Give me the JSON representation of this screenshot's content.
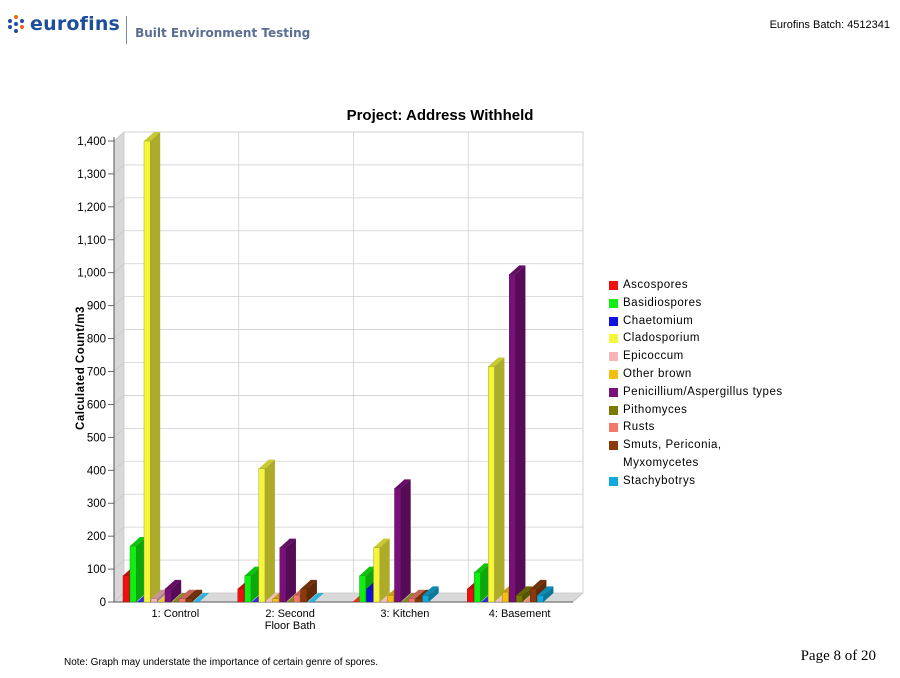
{
  "header": {
    "logo_text": "eurofins",
    "logo_subtitle": "Built Environment Testing",
    "batch_label": "Eurofins Batch:",
    "batch_number": "4512341"
  },
  "footer": {
    "note": "Note: Graph may understate the importance of certain genre of spores.",
    "page": "Page 8 of 20"
  },
  "chart_data": {
    "type": "bar",
    "title": "Project: Address Withheld",
    "xlabel": "",
    "ylabel": "Calculated Count/m3",
    "ylim": [
      0,
      1400
    ],
    "yticks": [
      "0",
      "100",
      "200",
      "300",
      "400",
      "500",
      "600",
      "700",
      "800",
      "900",
      "1,000",
      "1,100",
      "1,200",
      "1,300",
      "1,400"
    ],
    "grid": true,
    "legend_position": "right",
    "categories": [
      "1: Control",
      "2: Second Floor Bath",
      "3: Kitchen",
      "4: Basement"
    ],
    "category_lines": [
      [
        "1: Control"
      ],
      [
        "2: Second",
        "Floor Bath"
      ],
      [
        "3: Kitchen"
      ],
      [
        "4: Basement"
      ]
    ],
    "series": [
      {
        "name": "Ascospores",
        "color": "#ee1111",
        "values": [
          80,
          40,
          0,
          40
        ]
      },
      {
        "name": "Basidiospores",
        "color": "#11ee11",
        "values": [
          170,
          80,
          80,
          90
        ]
      },
      {
        "name": "Chaetomium",
        "color": "#1111dd",
        "values": [
          0,
          0,
          40,
          0
        ]
      },
      {
        "name": "Cladosporium",
        "color": "#f5f53c",
        "values": [
          1400,
          405,
          165,
          715
        ]
      },
      {
        "name": "Epicoccum",
        "color": "#f4b6b6",
        "values": [
          10,
          0,
          0,
          0
        ]
      },
      {
        "name": "Other brown",
        "color": "#f2c010",
        "values": [
          0,
          10,
          20,
          30
        ]
      },
      {
        "name": "Penicillium/Aspergillus types",
        "color": "#7a107a",
        "values": [
          40,
          165,
          345,
          995
        ]
      },
      {
        "name": "Pithomyces",
        "color": "#7a7a00",
        "values": [
          0,
          0,
          0,
          20
        ]
      },
      {
        "name": "Rusts",
        "color": "#f07a6a",
        "values": [
          10,
          20,
          10,
          0
        ]
      },
      {
        "name": "Smuts, Periconia, Myxomycetes",
        "color": "#8a3a0a",
        "values": [
          10,
          40,
          10,
          40
        ]
      },
      {
        "name": "Stachybotrys",
        "color": "#10aadd",
        "values": [
          0,
          0,
          20,
          20
        ]
      }
    ],
    "legend_lines": [
      [
        "Ascospores"
      ],
      [
        "Basidiospores"
      ],
      [
        "Chaetomium"
      ],
      [
        "Cladosporium"
      ],
      [
        "Epicoccum"
      ],
      [
        "Other brown"
      ],
      [
        "Penicillium/Aspergillus types"
      ],
      [
        "Pithomyces"
      ],
      [
        "Rusts"
      ],
      [
        "Smuts, Periconia,",
        "Myxomycetes"
      ],
      [
        "Stachybotrys"
      ]
    ]
  }
}
